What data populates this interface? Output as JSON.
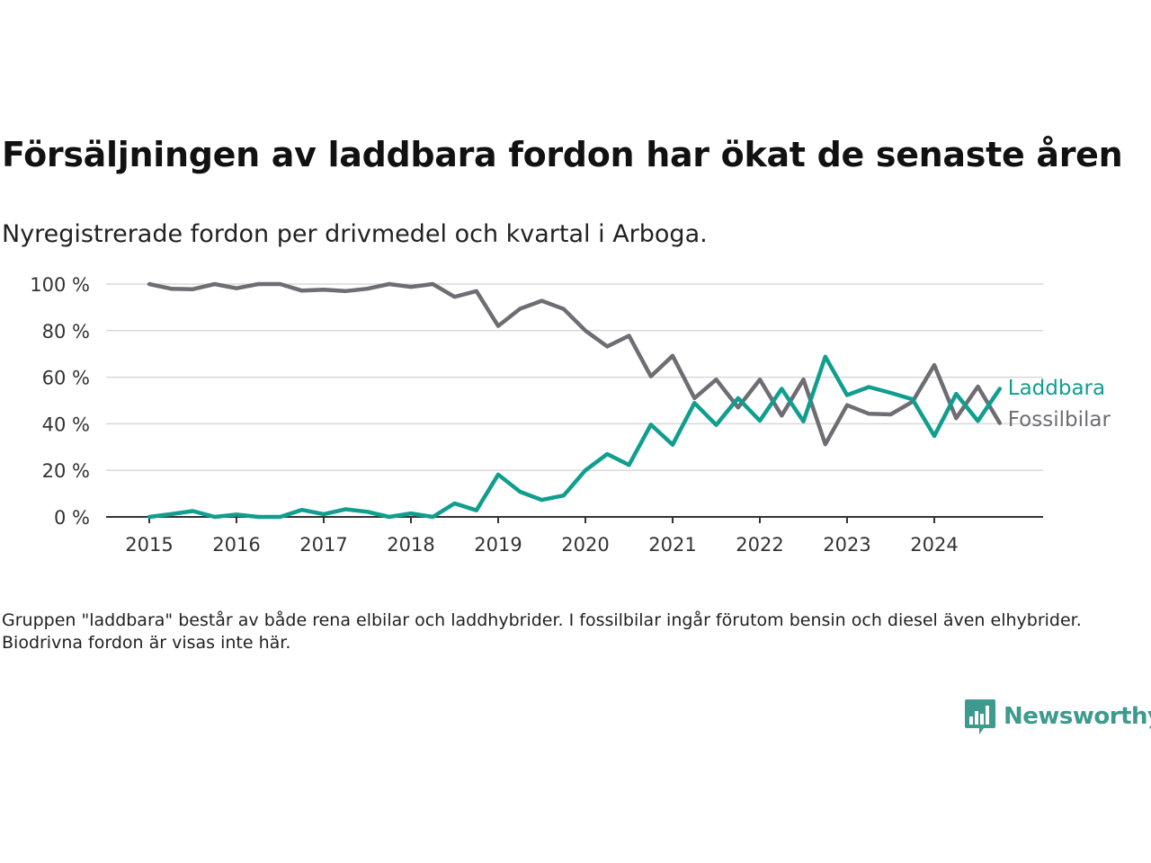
{
  "title": "Försäljningen av laddbara fordon har ökat de senaste åren",
  "subtitle": "Nyregistrerade fordon per drivmedel och kvartal i Arboga.",
  "note": "Gruppen \"laddbara\" består av både rena elbilar och laddhybrider. I fossilbilar ingår förutom bensin och diesel även elhybrider. Biodrivna fordon är visas inte här.",
  "logo": {
    "text": "Newsworthy",
    "icon": "chart-bubble-icon"
  },
  "colors": {
    "laddbara": "#109e8f",
    "fossilbilar": "#6f6d74",
    "grid": "#d9d9d9",
    "axis": "#333333"
  },
  "chart_data": {
    "type": "line",
    "x_start": "2015 Q1",
    "x_tick_labels": [
      "2015",
      "2016",
      "2017",
      "2018",
      "2019",
      "2020",
      "2021",
      "2022",
      "2023",
      "2024"
    ],
    "y_tick_labels": [
      "0 %",
      "20 %",
      "40 %",
      "60 %",
      "80 %",
      "100 %"
    ],
    "y_ticks": [
      0,
      20,
      40,
      60,
      80,
      100
    ],
    "ylim": [
      0,
      100
    ],
    "grid": true,
    "legend": "line-end labels",
    "series": [
      {
        "name": "Laddbara",
        "color": "#109e8f",
        "values": [
          0,
          1.2,
          2.5,
          0,
          1,
          0,
          0,
          3,
          1.2,
          3.3,
          2.2,
          0,
          1.5,
          0,
          5.8,
          2.8,
          18.2,
          10.8,
          7.3,
          9.2,
          20,
          27,
          22.3,
          39.6,
          31,
          48.9,
          39.5,
          51,
          41.3,
          55,
          41,
          68.8,
          52.3,
          55.8,
          53.3,
          50.5,
          34.8,
          52.8,
          41.2,
          55
        ]
      },
      {
        "name": "Fossilbilar",
        "color": "#6f6d74",
        "values": [
          100,
          98,
          97.8,
          100,
          98.2,
          100,
          100,
          97.2,
          97.6,
          97,
          98,
          100,
          98.8,
          100,
          94.5,
          97,
          82,
          89.4,
          92.8,
          89.3,
          80,
          73.2,
          77.8,
          60.4,
          69.2,
          51,
          59,
          47,
          59,
          43.5,
          59,
          31.2,
          48,
          44.3,
          44,
          49.5,
          65.2,
          42.4,
          56,
          40.3
        ]
      }
    ]
  }
}
